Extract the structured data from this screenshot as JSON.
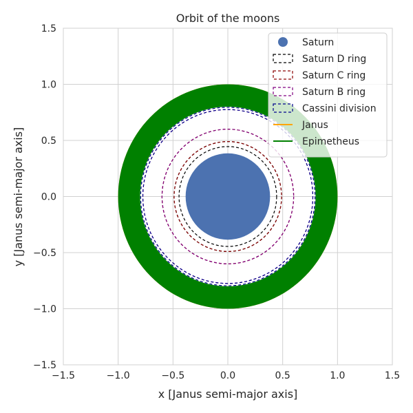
{
  "chart_data": {
    "type": "scatter",
    "title": "Orbit of the moons",
    "xlabel": "x [Janus semi-major axis]",
    "ylabel": "y [Janus semi-major axis]",
    "xlim": [
      -1.5,
      1.5
    ],
    "ylim": [
      -1.5,
      1.5
    ],
    "xticks": [
      -1.5,
      -1.0,
      -0.5,
      0.0,
      0.5,
      1.0,
      1.5
    ],
    "yticks": [
      -1.5,
      -1.0,
      -0.5,
      0.0,
      0.5,
      1.0,
      1.5
    ],
    "xtick_labels": [
      "−1.5",
      "−1.0",
      "−0.5",
      "0.0",
      "0.5",
      "1.0",
      "1.5"
    ],
    "ytick_labels": [
      "−1.5",
      "−1.0",
      "−0.5",
      "0.0",
      "0.5",
      "1.0",
      "1.5"
    ],
    "grid": true,
    "legend_position": "top-right",
    "saturn": {
      "name": "Saturn",
      "x": 0,
      "y": 0,
      "radius": 0.385,
      "color": "#4c72b0"
    },
    "rings": [
      {
        "name": "Saturn D ring",
        "inner": 0.445,
        "outer": 0.49,
        "color": "#000000"
      },
      {
        "name": "Saturn C ring",
        "inner": 0.49,
        "outer": 0.6,
        "color": "#8b0000"
      },
      {
        "name": "Saturn B ring",
        "inner": 0.6,
        "outer": 0.775,
        "color": "#800080"
      },
      {
        "name": "Cassini division",
        "inner": 0.775,
        "outer": 0.795,
        "color": "#00008b"
      }
    ],
    "moons": [
      {
        "name": "Janus",
        "color": "#ffa500",
        "radius_min": 0.99,
        "radius_max": 1.0
      },
      {
        "name": "Epimetheus",
        "color": "#008000",
        "radius_min": 0.8,
        "radius_max": 1.0
      }
    ]
  }
}
